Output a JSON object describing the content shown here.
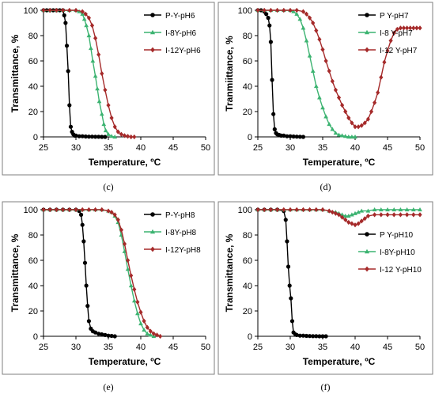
{
  "chart_data": [
    {
      "type": "line",
      "panel_label": "(c)",
      "xlabel": "Temperature, ºC",
      "ylabel": "Transmittance, %",
      "xlim": [
        25,
        50
      ],
      "ylim": [
        0,
        100
      ],
      "xticks": [
        "25",
        "30",
        "35",
        "40",
        "45",
        "50"
      ],
      "yticks": [
        "0",
        "20",
        "40",
        "60",
        "80",
        "100"
      ],
      "legend_position": "top-right",
      "grid": false,
      "series": [
        {
          "name": "P-Y-pH6",
          "color": "#000000",
          "marker": "circle",
          "x": [
            25,
            25.5,
            26,
            26.5,
            27,
            27.5,
            28,
            28.2,
            28.4,
            28.6,
            28.8,
            29,
            29.2,
            29.4,
            29.6,
            29.8,
            30,
            30.5,
            31,
            31.5,
            32,
            32.5,
            33,
            33.5,
            34,
            34.5
          ],
          "y": [
            100,
            100,
            100,
            100,
            100,
            100,
            100,
            96,
            90,
            72,
            52,
            25,
            8,
            4,
            2,
            1,
            1,
            0.5,
            0.5,
            0.3,
            0.2,
            0.2,
            0.1,
            0.1,
            0,
            0
          ]
        },
        {
          "name": "I-8Y-pH6",
          "color": "#3cb371",
          "marker": "triangle",
          "x": [
            25,
            26,
            27,
            28,
            29,
            30,
            30.5,
            31,
            31.3,
            31.6,
            32,
            32.3,
            32.6,
            33,
            33.3,
            33.6,
            34,
            34.3,
            34.6,
            35,
            35.5,
            36
          ],
          "y": [
            100,
            100,
            100,
            100,
            100,
            100,
            99,
            97,
            93,
            88,
            80,
            70,
            60,
            48,
            38,
            28,
            18,
            10,
            5,
            2,
            0.5,
            0
          ]
        },
        {
          "name": "I-12Y-pH6",
          "color": "#a52a2a",
          "marker": "diamond",
          "x": [
            25,
            26,
            27,
            28,
            29,
            30,
            31,
            31.5,
            32,
            32.5,
            33,
            33.5,
            34,
            34.5,
            35,
            35.5,
            36,
            36.5,
            37,
            37.5,
            38,
            38.5,
            39
          ],
          "y": [
            100,
            100,
            100,
            100,
            100,
            100,
            99,
            97,
            94,
            88,
            78,
            65,
            50,
            37,
            25,
            15,
            8,
            4,
            2,
            1,
            0.5,
            0,
            0
          ]
        }
      ]
    },
    {
      "type": "line",
      "panel_label": "(d)",
      "xlabel": "Temperature, ºC",
      "ylabel": "Tranmiittance, %",
      "xlim": [
        25,
        50
      ],
      "ylim": [
        0,
        100
      ],
      "xticks": [
        "25",
        "30",
        "35",
        "40",
        "45",
        "50"
      ],
      "yticks": [
        "0",
        "20",
        "40",
        "60",
        "80",
        "100"
      ],
      "legend_position": "top-right",
      "grid": false,
      "series": [
        {
          "name": "P Y-pH7",
          "color": "#000000",
          "marker": "circle",
          "x": [
            25,
            25.5,
            26,
            26.3,
            26.6,
            26.8,
            27,
            27.2,
            27.4,
            27.6,
            27.8,
            28,
            28.3,
            28.6,
            29,
            29.5,
            30,
            30.5,
            31,
            31.5,
            32
          ],
          "y": [
            100,
            100,
            99,
            97,
            94,
            88,
            75,
            45,
            18,
            6,
            3,
            2,
            1.5,
            1,
            1,
            0.5,
            0.5,
            0.3,
            0.2,
            0.1,
            0
          ]
        },
        {
          "name": "I-8 Y-pH7",
          "color": "#3cb371",
          "marker": "triangle",
          "x": [
            25,
            26,
            27,
            28,
            29,
            30,
            30.5,
            31,
            31.5,
            32,
            32.5,
            33,
            33.5,
            34,
            34.5,
            35,
            35.5,
            36,
            36.5,
            37,
            37.5,
            38,
            38.5,
            39,
            39.5,
            40
          ],
          "y": [
            100,
            100,
            100,
            100,
            100,
            100,
            99,
            97,
            93,
            86,
            76,
            64,
            52,
            40,
            31,
            23,
            16,
            10,
            6,
            3,
            1.5,
            1,
            0.5,
            0,
            0,
            0
          ]
        },
        {
          "name": "I-12 Y-pH7",
          "color": "#a52a2a",
          "marker": "diamond",
          "x": [
            25,
            26,
            27,
            28,
            29,
            30,
            31,
            32,
            32.5,
            33,
            33.5,
            34,
            34.5,
            35,
            35.5,
            36,
            36.5,
            37,
            37.5,
            38,
            38.5,
            39,
            39.5,
            40,
            40.5,
            41,
            41.5,
            42,
            42.5,
            43,
            43.5,
            44,
            44.5,
            45,
            45.5,
            46,
            46.5,
            47,
            47.5,
            48,
            48.5,
            49,
            49.5,
            50
          ],
          "y": [
            100,
            100,
            100,
            100,
            100,
            100,
            100,
            99,
            97,
            94,
            90,
            84,
            77,
            69,
            60,
            52,
            44,
            37,
            31,
            25,
            20,
            15,
            11,
            8,
            8,
            9,
            11,
            14,
            20,
            27,
            35,
            47,
            59,
            68,
            76,
            82,
            85,
            86,
            86,
            86,
            86,
            86,
            86,
            86
          ]
        }
      ]
    },
    {
      "type": "line",
      "panel_label": "(e)",
      "xlabel": "Temperature, ºC",
      "ylabel": "Transmittance, %",
      "xlim": [
        25,
        50
      ],
      "ylim": [
        0,
        100
      ],
      "xticks": [
        "25",
        "30",
        "35",
        "40",
        "45",
        "50"
      ],
      "yticks": [
        "0",
        "20",
        "40",
        "60",
        "80",
        "100"
      ],
      "legend_position": "top-right",
      "grid": false,
      "series": [
        {
          "name": "P-Y-pH8",
          "color": "#000000",
          "marker": "circle",
          "x": [
            25,
            26,
            27,
            28,
            29,
            30,
            30.5,
            30.8,
            31,
            31.2,
            31.4,
            31.6,
            31.8,
            32,
            32.3,
            32.6,
            33,
            33.5,
            34,
            34.5,
            35,
            35.5,
            36
          ],
          "y": [
            100,
            100,
            100,
            100,
            100,
            100,
            99,
            96,
            88,
            75,
            58,
            40,
            24,
            12,
            6,
            4,
            3,
            2,
            1.5,
            1,
            0.5,
            0.3,
            0
          ]
        },
        {
          "name": "I-8Y-pH8",
          "color": "#3cb371",
          "marker": "triangle",
          "x": [
            25,
            26,
            27,
            28,
            29,
            30,
            31,
            32,
            33,
            34,
            35,
            35.5,
            36,
            36.5,
            37,
            37.5,
            38,
            38.5,
            39,
            39.5,
            40,
            40.5,
            41,
            41.5,
            42
          ],
          "y": [
            100,
            100,
            100,
            100,
            100,
            100,
            100,
            100,
            100,
            100,
            99,
            98,
            95,
            90,
            80,
            67,
            53,
            40,
            28,
            18,
            10,
            5,
            2,
            1,
            0
          ]
        },
        {
          "name": "I-12Y-pH8",
          "color": "#a52a2a",
          "marker": "diamond",
          "x": [
            25,
            26,
            27,
            28,
            29,
            30,
            31,
            32,
            33,
            34,
            35,
            35.5,
            36,
            36.5,
            37,
            37.5,
            38,
            38.5,
            39,
            39.5,
            40,
            40.5,
            41,
            41.5,
            42,
            42.5,
            43
          ],
          "y": [
            100,
            100,
            100,
            100,
            100,
            100,
            100,
            100,
            100,
            100,
            99,
            98,
            96,
            92,
            84,
            73,
            60,
            48,
            37,
            27,
            19,
            12,
            7,
            4,
            2,
            1,
            0
          ]
        }
      ]
    },
    {
      "type": "line",
      "panel_label": "(f)",
      "xlabel": "Temperature, ºC",
      "ylabel": "Transmittance, %",
      "xlim": [
        25,
        50
      ],
      "ylim": [
        0,
        100
      ],
      "xticks": [
        "25",
        "30",
        "35",
        "40",
        "45",
        "50"
      ],
      "yticks": [
        "0",
        "20",
        "40",
        "60",
        "80",
        "100"
      ],
      "legend_position": "middle-right",
      "grid": false,
      "series": [
        {
          "name": "P Y-pH10",
          "color": "#000000",
          "marker": "circle",
          "x": [
            25,
            26,
            27,
            28,
            29,
            29.3,
            29.5,
            29.7,
            29.9,
            30.1,
            30.3,
            30.5,
            30.8,
            31,
            31.5,
            32,
            32.5,
            33,
            33.5,
            34,
            34.5,
            35,
            35.5
          ],
          "y": [
            100,
            100,
            100,
            100,
            99,
            92,
            75,
            55,
            40,
            30,
            12,
            3,
            1.5,
            1,
            0.5,
            0.5,
            0.3,
            0.2,
            0.1,
            0.1,
            0,
            0,
            0
          ]
        },
        {
          "name": "I-8Y-pH10",
          "color": "#3cb371",
          "marker": "triangle",
          "x": [
            25,
            26,
            27,
            28,
            29,
            30,
            31,
            32,
            33,
            34,
            35,
            36,
            37,
            37.5,
            38,
            38.5,
            39,
            39.5,
            40,
            40.5,
            41,
            42,
            43,
            44,
            45,
            46,
            47,
            48,
            49,
            50
          ],
          "y": [
            100,
            100,
            100,
            100,
            100,
            100,
            100,
            100,
            100,
            100,
            100,
            99,
            98,
            97,
            96,
            95,
            95,
            96,
            97,
            98,
            99,
            99,
            100,
            100,
            100,
            100,
            100,
            100,
            100,
            100
          ]
        },
        {
          "name": "I-12 Y-pH10",
          "color": "#a52a2a",
          "marker": "diamond",
          "x": [
            25,
            26,
            27,
            28,
            29,
            30,
            31,
            32,
            33,
            34,
            35,
            36,
            36.5,
            37,
            37.5,
            38,
            38.5,
            39,
            39.5,
            40,
            40.5,
            41,
            41.5,
            42,
            43,
            44,
            45,
            46,
            47,
            48,
            49,
            50
          ],
          "y": [
            100,
            100,
            100,
            100,
            100,
            100,
            100,
            100,
            100,
            100,
            100,
            99,
            98,
            97,
            96,
            94,
            92,
            90,
            89,
            88,
            89,
            91,
            93,
            95,
            96,
            96,
            96,
            96,
            96,
            96,
            96,
            96
          ]
        }
      ]
    }
  ]
}
